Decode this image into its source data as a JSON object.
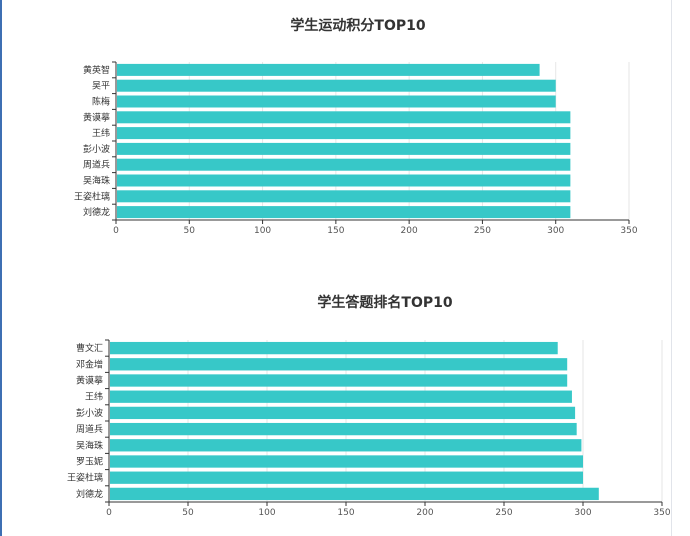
{
  "colors": {
    "bar": "#37c8c8",
    "axis": "#333333",
    "grid": "#e6e6e6",
    "text": "#333333"
  },
  "chart_data": [
    {
      "type": "bar",
      "orientation": "horizontal",
      "title": "学生运动积分TOP10",
      "categories": [
        "黄英智",
        "吴平",
        "陈梅",
        "黄谟摹",
        "王纬",
        "彭小波",
        "周道兵",
        "吴海珠",
        "王姿杜璃",
        "刘德龙"
      ],
      "values": [
        289,
        300,
        300,
        310,
        310,
        310,
        310,
        310,
        310,
        310
      ],
      "xlim": [
        0,
        350
      ],
      "xticks": [
        "0",
        "50",
        "100",
        "150",
        "200",
        "250",
        "300",
        "350"
      ],
      "grid": true
    },
    {
      "type": "bar",
      "orientation": "horizontal",
      "title": "学生答题排名TOP10",
      "categories": [
        "曹文汇",
        "邓金增",
        "黄谟摹",
        "王纬",
        "彭小波",
        "周道兵",
        "吴海珠",
        "罗玉妮",
        "王姿杜璃",
        "刘德龙"
      ],
      "values": [
        284,
        290,
        290,
        293,
        295,
        296,
        299,
        300,
        300,
        310
      ],
      "xlim": [
        0,
        350
      ],
      "xticks": [
        "0",
        "50",
        "100",
        "150",
        "200",
        "250",
        "300",
        "350"
      ],
      "grid": true
    }
  ]
}
